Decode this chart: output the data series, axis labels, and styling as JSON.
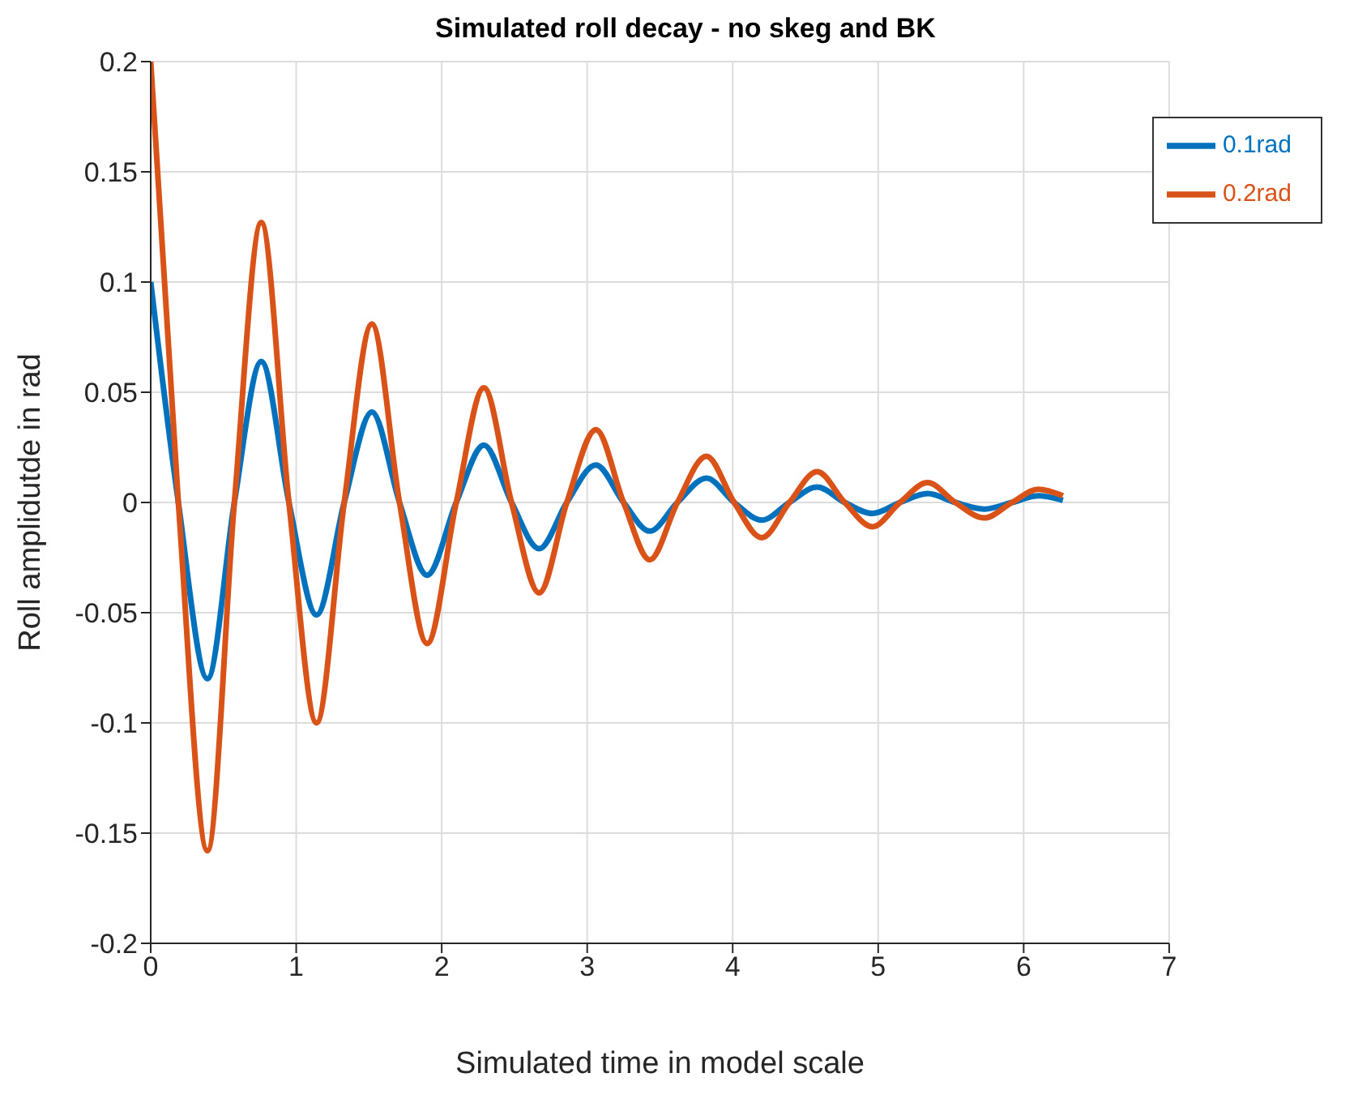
{
  "chart_data": {
    "type": "line",
    "title": "Simulated roll decay - no skeg and BK",
    "xlabel": "Simulated time in model scale",
    "ylabel": "Roll amplidutde in rad",
    "xlim": [
      0,
      7
    ],
    "xticks": [
      0,
      1,
      2,
      3,
      4,
      5,
      6,
      7
    ],
    "ylim": [
      -0.2,
      0.2
    ],
    "yticks": [
      -0.2,
      -0.15,
      -0.1,
      -0.05,
      0,
      0.05,
      0.1,
      0.15,
      0.2
    ],
    "grid": true,
    "legend": "top right",
    "marker": "none",
    "line_style": "solid",
    "series": [
      {
        "name": "0.1rad",
        "color": "#0072bd",
        "x": [
          0,
          0.19,
          0.39,
          0.575,
          0.76,
          0.95,
          1.14,
          1.33,
          1.52,
          1.71,
          1.9,
          2.1,
          2.29,
          2.48,
          2.67,
          2.86,
          3.06,
          3.25,
          3.43,
          3.62,
          3.82,
          4.01,
          4.2,
          4.39,
          4.58,
          4.77,
          4.96,
          5.15,
          5.34,
          5.53,
          5.73,
          5.92,
          6.1,
          6.27
        ],
        "values": [
          0.1,
          0,
          -0.08,
          0,
          0.064,
          0,
          -0.051,
          0,
          0.041,
          0,
          -0.033,
          0,
          0.026,
          0,
          -0.021,
          0,
          0.017,
          0,
          -0.013,
          0,
          0.011,
          0,
          -0.008,
          0,
          0.007,
          0,
          -0.005,
          0,
          0.004,
          0,
          -0.003,
          0,
          0.003,
          0.001
        ]
      },
      {
        "name": "0.2rad",
        "color": "#d95319",
        "x": [
          0,
          0.19,
          0.39,
          0.575,
          0.76,
          0.95,
          1.14,
          1.33,
          1.52,
          1.71,
          1.9,
          2.1,
          2.29,
          2.48,
          2.67,
          2.86,
          3.06,
          3.25,
          3.43,
          3.62,
          3.82,
          4.01,
          4.2,
          4.39,
          4.58,
          4.77,
          4.96,
          5.15,
          5.34,
          5.53,
          5.73,
          5.92,
          6.1,
          6.27
        ],
        "values": [
          0.2,
          0,
          -0.158,
          0,
          0.127,
          0,
          -0.1,
          0,
          0.081,
          0,
          -0.064,
          0,
          0.052,
          0,
          -0.041,
          0,
          0.033,
          0,
          -0.026,
          0,
          0.021,
          0,
          -0.016,
          0,
          0.014,
          0,
          -0.011,
          0,
          0.009,
          0,
          -0.007,
          0,
          0.006,
          0.003
        ]
      }
    ]
  }
}
